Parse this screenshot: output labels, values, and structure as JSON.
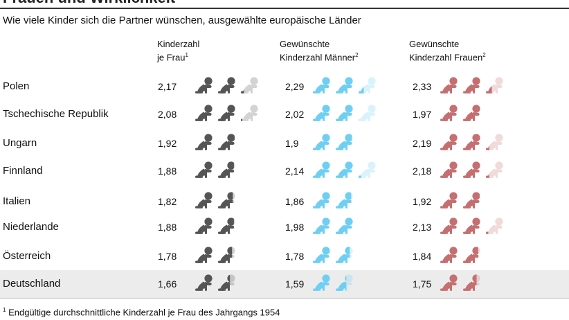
{
  "header": {
    "title_partial": "Frauen und Wirklichkeit",
    "subtitle": "Wie viele Kinder sich die Partner wünschen, ausgewählte europäische Länder"
  },
  "columns": [
    {
      "line1": "Kinderzahl",
      "line2": "je Frau",
      "sup": "1"
    },
    {
      "line1": "Gewünschte",
      "line2": "Kinderzahl Männer",
      "sup": "2"
    },
    {
      "line1": "Gewünschte",
      "line2": "Kinderzahl Frauen",
      "sup": "2"
    }
  ],
  "footnote": {
    "sup": "1",
    "text": " Endgültige durchschnittliche Kinderzahl je Frau des Jahrgangs 1954"
  },
  "colors": {
    "kinderzahl": "#555555",
    "maenner": "#6fcff2",
    "frauen": "#c66f70",
    "highlight_row": "#ececec"
  },
  "chart_data": {
    "type": "table",
    "icon": "crawling-baby-icon",
    "highlight": "Deutschland",
    "series": [
      {
        "key": "kinderzahl",
        "name": "Kinderzahl je Frau"
      },
      {
        "key": "maenner",
        "name": "Gewünschte Kinderzahl Männer"
      },
      {
        "key": "frauen",
        "name": "Gewünschte Kinderzahl Frauen"
      }
    ],
    "rows": [
      {
        "country": "Polen",
        "kinderzahl": 2.17,
        "kinderzahl_label": "2,17",
        "maenner": 2.29,
        "maenner_label": "2,29",
        "frauen": 2.33,
        "frauen_label": "2,33"
      },
      {
        "country": "Tschechische Republik",
        "kinderzahl": 2.08,
        "kinderzahl_label": "2,08",
        "maenner": 2.02,
        "maenner_label": "2,02",
        "frauen": 1.97,
        "frauen_label": "1,97"
      },
      {
        "country": "Ungarn",
        "kinderzahl": 1.92,
        "kinderzahl_label": "1,92",
        "maenner": 1.9,
        "maenner_label": "1,9",
        "frauen": 2.19,
        "frauen_label": "2,19"
      },
      {
        "country": "Finnland",
        "kinderzahl": 1.88,
        "kinderzahl_label": "1,88",
        "maenner": 2.14,
        "maenner_label": "2,14",
        "frauen": 2.18,
        "frauen_label": "2,18"
      },
      {
        "country": "Italien",
        "kinderzahl": 1.82,
        "kinderzahl_label": "1,82",
        "maenner": 1.86,
        "maenner_label": "1,86",
        "frauen": 1.92,
        "frauen_label": "1,92"
      },
      {
        "country": "Niederlande",
        "kinderzahl": 1.88,
        "kinderzahl_label": "1,88",
        "maenner": 1.98,
        "maenner_label": "1,98",
        "frauen": 2.13,
        "frauen_label": "2,13"
      },
      {
        "country": "Österreich",
        "kinderzahl": 1.78,
        "kinderzahl_label": "1,78",
        "maenner": 1.78,
        "maenner_label": "1,78",
        "frauen": 1.84,
        "frauen_label": "1,84"
      },
      {
        "country": "Deutschland",
        "kinderzahl": 1.66,
        "kinderzahl_label": "1,66",
        "maenner": 1.59,
        "maenner_label": "1,59",
        "frauen": 1.75,
        "frauen_label": "1,75"
      }
    ]
  }
}
